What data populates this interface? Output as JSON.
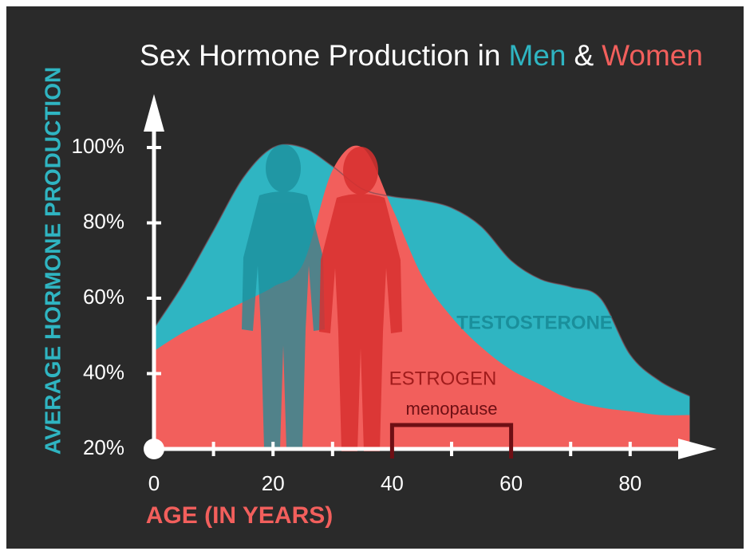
{
  "chart_data": {
    "type": "area",
    "title_parts": [
      {
        "text": "Sex Hormone Production in",
        "color": "#ffffff"
      },
      {
        "text": "Men",
        "color": "#2fb5c2"
      },
      {
        "text": "&",
        "color": "#ffffff"
      },
      {
        "text": "Women",
        "color": "#f25f5c"
      }
    ],
    "y_label": "AVERAGE HORMONE PRODUCTION",
    "x_label": "AGE (IN YEARS)",
    "x": [
      0,
      5,
      10,
      15,
      20,
      25,
      30,
      35,
      40,
      45,
      50,
      55,
      60,
      65,
      70,
      75,
      80,
      85,
      90
    ],
    "series": [
      {
        "name": "TESTOSTERONE",
        "color": "#2fb5c2",
        "values": [
          52,
          64,
          78,
          92,
          100,
          100,
          95,
          89,
          87,
          86,
          84,
          79,
          70,
          65,
          63,
          60,
          45,
          38,
          34
        ]
      },
      {
        "name": "ESTROGEN",
        "color": "#f25f5c",
        "values": [
          46,
          51,
          55,
          59,
          63,
          69,
          94,
          100,
          84,
          66,
          55,
          47,
          41,
          37,
          33,
          31,
          30,
          29,
          29
        ]
      }
    ],
    "annotation": {
      "text": "menopause",
      "range": [
        40,
        60
      ]
    },
    "xlim": [
      0,
      94
    ],
    "ylim": [
      20,
      110
    ],
    "xticks": [
      0,
      20,
      40,
      60,
      80
    ],
    "xminorticks": [
      10,
      30,
      50,
      70
    ],
    "yticks": [
      {
        "value": 20,
        "label": "20%"
      },
      {
        "value": 40,
        "label": "40%"
      },
      {
        "value": 60,
        "label": "60%"
      },
      {
        "value": 80,
        "label": "80%"
      },
      {
        "value": 100,
        "label": "100%"
      }
    ]
  }
}
